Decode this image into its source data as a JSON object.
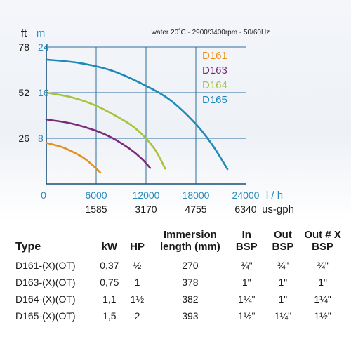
{
  "chart_data": {
    "type": "line",
    "title": "water 20˚C - 2900/3400rpm - 50/60Hz",
    "x_unit": "l / h",
    "x_unit_alt": "us-gph",
    "y_unit_left": "ft",
    "y_unit_right": "m",
    "xlim": [
      0,
      24000
    ],
    "ylim": [
      0,
      24
    ],
    "x_ticks": [
      "0",
      "6000",
      "12000",
      "18000",
      "24000"
    ],
    "x_ticks_alt": [
      "1585",
      "3170",
      "4755",
      "6340"
    ],
    "y_ticks_ft": [
      "26",
      "52",
      "78"
    ],
    "y_ticks_m": [
      "8",
      "16",
      "24"
    ],
    "grid": true,
    "legend_position": "top-right",
    "series": [
      {
        "name": "D161",
        "color": "#e8901a",
        "x": [
          0,
          2000,
          4000,
          5000,
          6000,
          6500
        ],
        "y": [
          7.2,
          6.4,
          5.0,
          4.0,
          2.7,
          2.0
        ]
      },
      {
        "name": "D163",
        "color": "#7b2a7a",
        "x": [
          0,
          3000,
          6000,
          8000,
          10000,
          11500,
          12500
        ],
        "y": [
          11.3,
          10.6,
          9.3,
          8.0,
          6.2,
          4.4,
          2.8
        ]
      },
      {
        "name": "D164",
        "color": "#a9c23a",
        "x": [
          0,
          3000,
          6000,
          9000,
          11000,
          13000,
          14300
        ],
        "y": [
          16.0,
          15.2,
          13.7,
          11.4,
          9.4,
          6.2,
          2.7
        ]
      },
      {
        "name": "D165",
        "color": "#1f88b8",
        "x": [
          0,
          4000,
          8000,
          12000,
          15000,
          18000,
          20000,
          21800
        ],
        "y": [
          21.8,
          21.2,
          19.8,
          17.2,
          14.6,
          10.5,
          6.8,
          2.6
        ]
      }
    ]
  },
  "table": {
    "headers": [
      "Type",
      "kW",
      "HP",
      "Immersion length (mm)",
      "In BSP",
      "Out BSP",
      "Out # X BSP"
    ],
    "rows": [
      [
        "D161-(X)(OT)",
        "0,37",
        "½",
        "270",
        "¾\"",
        "¾\"",
        "¾\""
      ],
      [
        "D163-(X)(OT)",
        "0,75",
        "1",
        "378",
        "1\"",
        "1\"",
        "1\""
      ],
      [
        "D164-(X)(OT)",
        "1,1",
        "1½",
        "382",
        "1¼\"",
        "1\"",
        "1¼\""
      ],
      [
        "D165-(X)(OT)",
        "1,5",
        "2",
        "393",
        "1½\"",
        "1¼\"",
        "1½\""
      ]
    ]
  }
}
